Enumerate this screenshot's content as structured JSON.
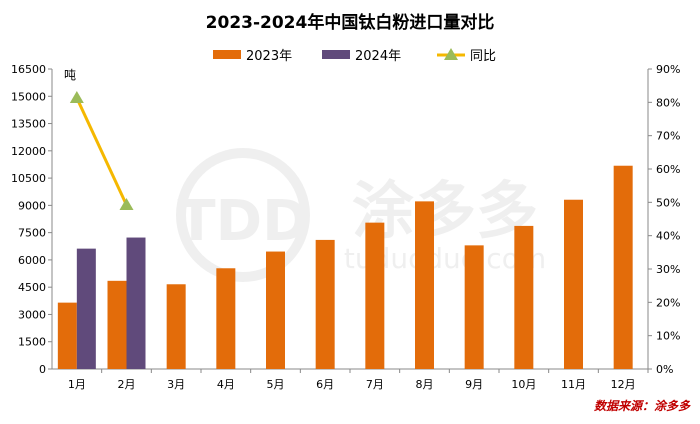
{
  "chart_data": {
    "type": "bar",
    "title": "2023-2024年中国钛白粉进口量对比",
    "unit_label": "吨",
    "source": "数据来源：涂多多",
    "watermark": "TDD 涂多多 tuduoduo.com",
    "categories": [
      "1月",
      "2月",
      "3月",
      "4月",
      "5月",
      "6月",
      "7月",
      "8月",
      "9月",
      "10月",
      "11月",
      "12月"
    ],
    "series": [
      {
        "name": "2023年",
        "type": "bar",
        "axis": "left",
        "color": "#e36c0a",
        "values": [
          3650,
          4850,
          4660,
          5540,
          6460,
          7100,
          8050,
          9220,
          6800,
          7870,
          9310,
          11180
        ]
      },
      {
        "name": "2024年",
        "type": "bar",
        "axis": "left",
        "color": "#604a7b",
        "values": [
          6620,
          7230,
          null,
          null,
          null,
          null,
          null,
          null,
          null,
          null,
          null,
          null
        ]
      },
      {
        "name": "同比",
        "type": "line",
        "axis": "right",
        "color": "#f5b800",
        "marker_color": "#9bbb59",
        "values": [
          81.3,
          49.2,
          null,
          null,
          null,
          null,
          null,
          null,
          null,
          null,
          null,
          null
        ]
      }
    ],
    "ylim": [
      0,
      16500
    ],
    "yticks": [
      0,
      1500,
      3000,
      4500,
      6000,
      7500,
      9000,
      10500,
      12000,
      13500,
      15000,
      16500
    ],
    "y2lim": [
      0,
      90
    ],
    "y2ticks": [
      "0%",
      "10%",
      "20%",
      "30%",
      "40%",
      "50%",
      "60%",
      "70%",
      "80%",
      "90%"
    ],
    "legend_position": "top",
    "grid": false
  }
}
